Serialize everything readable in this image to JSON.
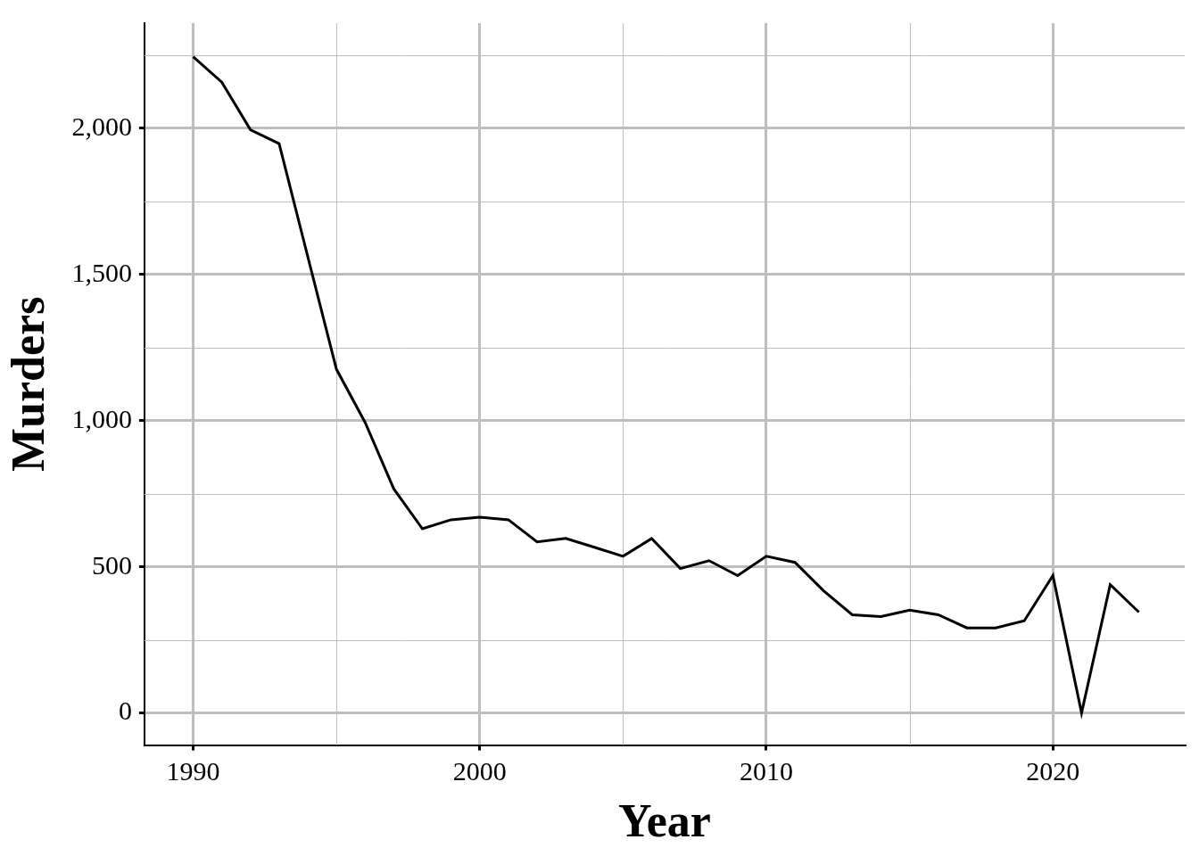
{
  "chart_data": {
    "type": "line",
    "x_label": "Year",
    "y_label": "Murders",
    "x": [
      1990,
      1991,
      1992,
      1993,
      1994,
      1995,
      1996,
      1997,
      1998,
      1999,
      2000,
      2001,
      2002,
      2003,
      2004,
      2005,
      2006,
      2007,
      2008,
      2009,
      2010,
      2011,
      2012,
      2013,
      2014,
      2015,
      2016,
      2017,
      2018,
      2019,
      2020,
      2021,
      2022,
      2023
    ],
    "values": [
      2245,
      2158,
      1995,
      1948,
      1561,
      1176,
      994,
      767,
      630,
      661,
      670,
      661,
      585,
      597,
      567,
      536,
      597,
      494,
      521,
      470,
      536,
      515,
      418,
      336,
      330,
      352,
      336,
      291,
      291,
      315,
      470,
      0,
      439,
      345
    ],
    "color": "#000000",
    "xlim": [
      1988.3,
      2024.6
    ],
    "xticks": [
      1990,
      2000,
      2010,
      2020
    ],
    "ylim": [
      -110,
      2360
    ],
    "yticks": [
      0,
      500,
      {
        "value": 1000,
        "label": "1,000"
      },
      {
        "value": 1500,
        "label": "1,500"
      },
      {
        "value": 2000,
        "label": "2,000"
      }
    ],
    "grid": true
  }
}
